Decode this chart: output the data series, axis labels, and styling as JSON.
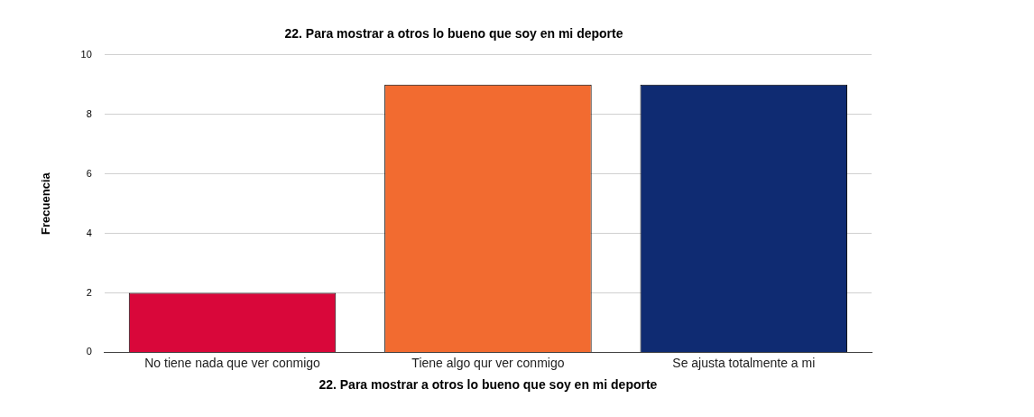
{
  "chart_data": {
    "type": "bar",
    "title": "22. Para mostrar a otros lo bueno que soy en mi deporte",
    "xlabel": "22. Para mostrar a otros lo bueno que soy en mi deporte",
    "ylabel": "Frecuencia",
    "categories": [
      "No tiene nada que ver conmigo",
      "Tiene algo qur ver conmigo",
      "Se ajusta totalmente a mi"
    ],
    "values": [
      2,
      9,
      9
    ],
    "colors": [
      "#d9073a",
      "#f26b30",
      "#0f2b72"
    ],
    "ylim": [
      0,
      10
    ],
    "yticks": [
      0,
      2,
      4,
      6,
      8,
      10
    ],
    "grid": "y",
    "legend": false
  }
}
